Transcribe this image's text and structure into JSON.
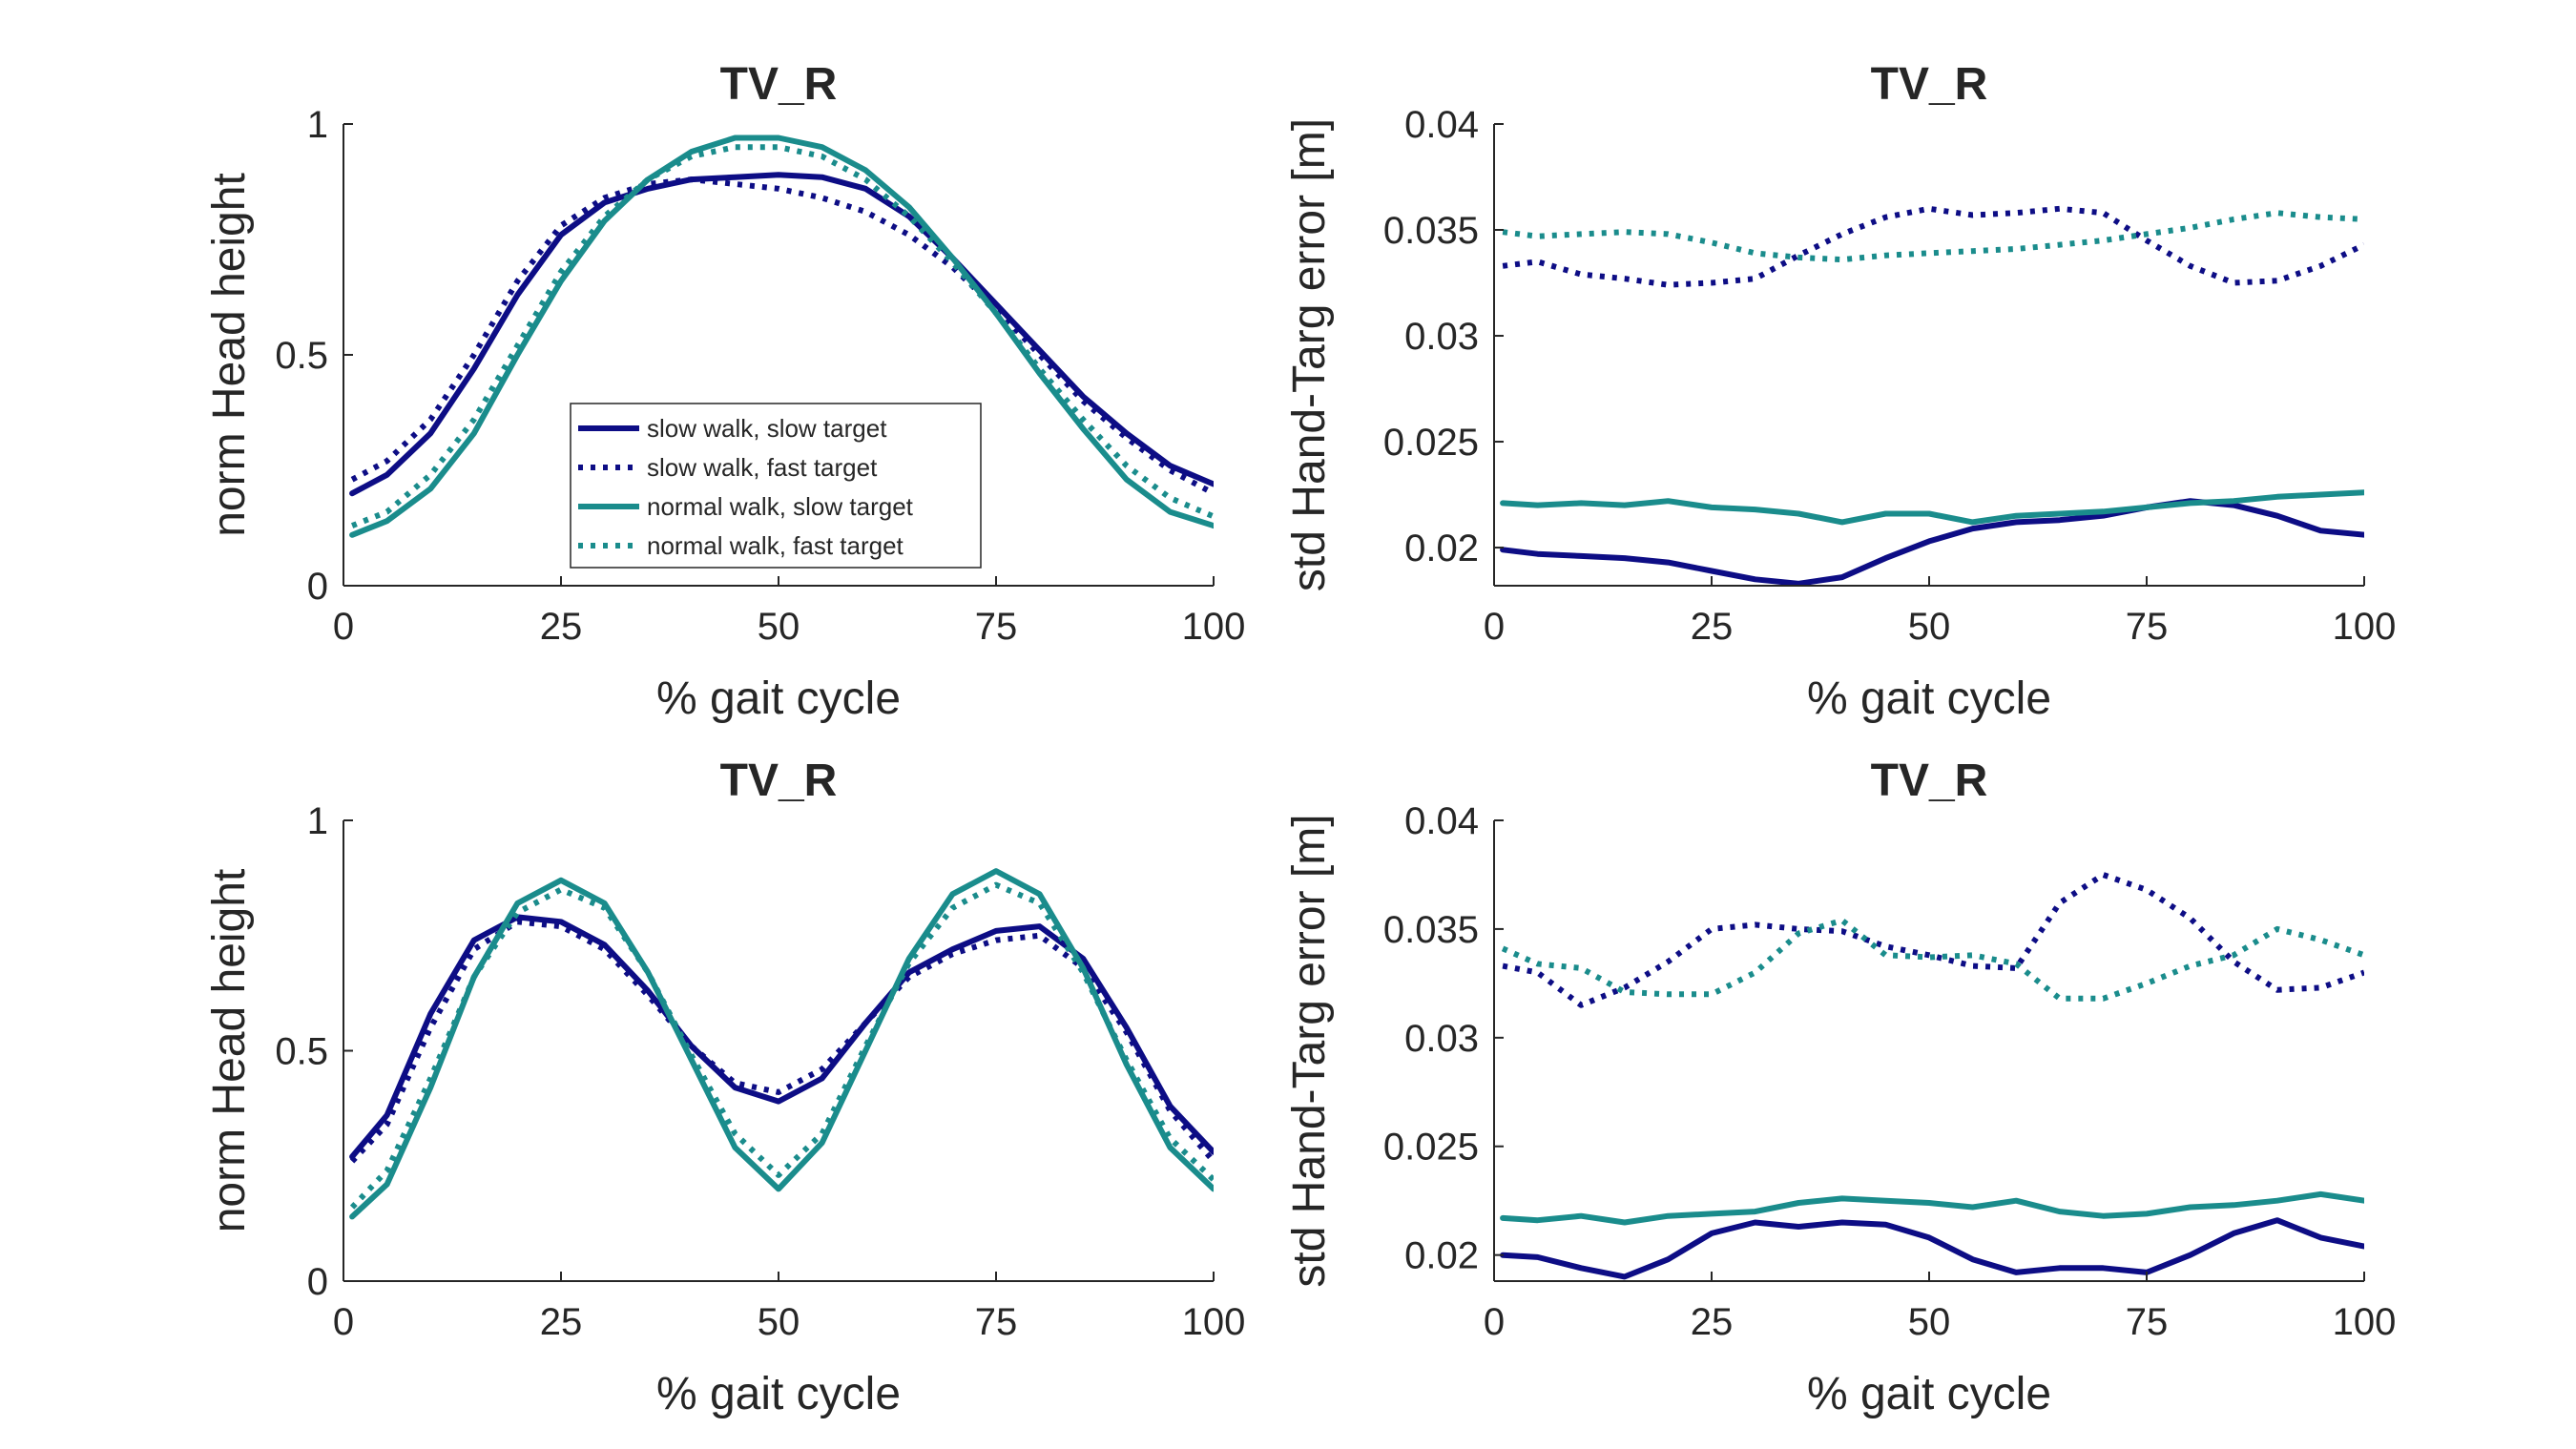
{
  "chart_data": [
    {
      "type": "line",
      "title": "TV_R",
      "xlabel": "% gait cycle",
      "ylabel": "norm Head height",
      "xlim": [
        0,
        100
      ],
      "ylim": [
        0,
        1
      ],
      "xticks": [
        0,
        25,
        50,
        75,
        100
      ],
      "xtick_labels": [
        "0",
        "25",
        "50",
        "75",
        "100"
      ],
      "yticks": [
        0,
        0.5,
        1
      ],
      "ytick_labels": [
        "0",
        "0.5",
        "1"
      ],
      "grid": false,
      "legend": {
        "location": "bottom-center",
        "entries": [
          "slow walk, slow target",
          "slow walk, fast target",
          "normal walk, slow target",
          "normal walk, fast target"
        ]
      },
      "series": [
        {
          "name": "slow walk, slow target",
          "color": "#0d0d85",
          "style": "solid",
          "x": [
            1,
            5,
            10,
            15,
            20,
            25,
            30,
            35,
            40,
            45,
            50,
            55,
            60,
            65,
            70,
            75,
            80,
            85,
            90,
            95,
            100
          ],
          "y": [
            0.2,
            0.24,
            0.33,
            0.47,
            0.63,
            0.76,
            0.83,
            0.86,
            0.88,
            0.885,
            0.89,
            0.885,
            0.86,
            0.8,
            0.71,
            0.61,
            0.51,
            0.41,
            0.33,
            0.26,
            0.22
          ]
        },
        {
          "name": "slow walk, fast target",
          "color": "#0d0d85",
          "style": "dotted",
          "x": [
            1,
            5,
            10,
            15,
            20,
            25,
            30,
            35,
            40,
            45,
            50,
            55,
            60,
            65,
            70,
            75,
            80,
            85,
            90,
            95,
            100
          ],
          "y": [
            0.23,
            0.27,
            0.36,
            0.5,
            0.66,
            0.78,
            0.84,
            0.87,
            0.88,
            0.87,
            0.86,
            0.84,
            0.81,
            0.76,
            0.69,
            0.6,
            0.5,
            0.4,
            0.32,
            0.25,
            0.2
          ]
        },
        {
          "name": "normal walk, slow target",
          "color": "#1a8c8c",
          "style": "solid",
          "x": [
            1,
            5,
            10,
            15,
            20,
            25,
            30,
            35,
            40,
            45,
            50,
            55,
            60,
            65,
            70,
            75,
            80,
            85,
            90,
            95,
            100
          ],
          "y": [
            0.11,
            0.14,
            0.21,
            0.33,
            0.5,
            0.66,
            0.79,
            0.88,
            0.94,
            0.97,
            0.97,
            0.95,
            0.9,
            0.82,
            0.71,
            0.59,
            0.46,
            0.34,
            0.23,
            0.16,
            0.13
          ]
        },
        {
          "name": "normal walk, fast target",
          "color": "#1a8c8c",
          "style": "dotted",
          "x": [
            1,
            5,
            10,
            15,
            20,
            25,
            30,
            35,
            40,
            45,
            50,
            55,
            60,
            65,
            70,
            75,
            80,
            85,
            90,
            95,
            100
          ],
          "y": [
            0.13,
            0.16,
            0.24,
            0.36,
            0.52,
            0.68,
            0.8,
            0.88,
            0.93,
            0.95,
            0.95,
            0.93,
            0.88,
            0.8,
            0.7,
            0.59,
            0.47,
            0.36,
            0.26,
            0.19,
            0.15
          ]
        }
      ]
    },
    {
      "type": "line",
      "title": "TV_R",
      "xlabel": "% gait cycle",
      "ylabel": "std Hand-Targ error [m]",
      "xlim": [
        0,
        100
      ],
      "ylim": [
        0.0182,
        0.04
      ],
      "xticks": [
        0,
        25,
        50,
        75,
        100
      ],
      "xtick_labels": [
        "0",
        "25",
        "50",
        "75",
        "100"
      ],
      "yticks": [
        0.02,
        0.025,
        0.03,
        0.035,
        0.04
      ],
      "ytick_labels": [
        "0.02",
        "0.025",
        "0.03",
        "0.035",
        "0.04"
      ],
      "grid": false,
      "series": [
        {
          "name": "slow walk, slow target",
          "color": "#0d0d85",
          "style": "solid",
          "x": [
            1,
            5,
            10,
            15,
            20,
            25,
            30,
            35,
            40,
            45,
            50,
            55,
            60,
            65,
            70,
            75,
            80,
            85,
            90,
            95,
            100
          ],
          "y": [
            0.0199,
            0.0197,
            0.0196,
            0.0195,
            0.0193,
            0.0189,
            0.0185,
            0.0183,
            0.0186,
            0.0195,
            0.0203,
            0.0209,
            0.0212,
            0.0213,
            0.0215,
            0.0219,
            0.0222,
            0.022,
            0.0215,
            0.0208,
            0.0206
          ]
        },
        {
          "name": "slow walk, fast target",
          "color": "#0d0d85",
          "style": "dotted",
          "x": [
            1,
            5,
            10,
            15,
            20,
            25,
            30,
            35,
            40,
            45,
            50,
            55,
            60,
            65,
            70,
            75,
            80,
            85,
            90,
            95,
            100
          ],
          "y": [
            0.0333,
            0.0335,
            0.0329,
            0.0327,
            0.0324,
            0.0325,
            0.0327,
            0.0338,
            0.0348,
            0.0356,
            0.036,
            0.0357,
            0.0358,
            0.036,
            0.0358,
            0.0345,
            0.0333,
            0.0325,
            0.0326,
            0.0333,
            0.0343
          ]
        },
        {
          "name": "normal walk, slow target",
          "color": "#1a8c8c",
          "style": "solid",
          "x": [
            1,
            5,
            10,
            15,
            20,
            25,
            30,
            35,
            40,
            45,
            50,
            55,
            60,
            65,
            70,
            75,
            80,
            85,
            90,
            95,
            100
          ],
          "y": [
            0.0221,
            0.022,
            0.0221,
            0.022,
            0.0222,
            0.0219,
            0.0218,
            0.0216,
            0.0212,
            0.0216,
            0.0216,
            0.0212,
            0.0215,
            0.0216,
            0.0217,
            0.0219,
            0.0221,
            0.0222,
            0.0224,
            0.0225,
            0.0226
          ]
        },
        {
          "name": "normal walk, fast target",
          "color": "#1a8c8c",
          "style": "dotted",
          "x": [
            1,
            5,
            10,
            15,
            20,
            25,
            30,
            35,
            40,
            45,
            50,
            55,
            60,
            65,
            70,
            75,
            80,
            85,
            90,
            95,
            100
          ],
          "y": [
            0.0349,
            0.0347,
            0.0348,
            0.0349,
            0.0348,
            0.0344,
            0.0339,
            0.0337,
            0.0336,
            0.0338,
            0.0339,
            0.034,
            0.0341,
            0.0343,
            0.0345,
            0.0348,
            0.0351,
            0.0355,
            0.0358,
            0.0356,
            0.0355
          ]
        }
      ]
    },
    {
      "type": "line",
      "title": "TV_R",
      "xlabel": "% gait cycle",
      "ylabel": "norm Head height",
      "xlim": [
        0,
        100
      ],
      "ylim": [
        0,
        1
      ],
      "xticks": [
        0,
        25,
        50,
        75,
        100
      ],
      "xtick_labels": [
        "0",
        "25",
        "50",
        "75",
        "100"
      ],
      "yticks": [
        0,
        0.5,
        1
      ],
      "ytick_labels": [
        "0",
        "0.5",
        "1"
      ],
      "grid": false,
      "series": [
        {
          "name": "slow walk, slow target",
          "color": "#0d0d85",
          "style": "solid",
          "x": [
            1,
            5,
            10,
            15,
            20,
            25,
            30,
            35,
            40,
            45,
            50,
            55,
            60,
            65,
            70,
            75,
            80,
            85,
            90,
            95,
            100
          ],
          "y": [
            0.27,
            0.36,
            0.58,
            0.74,
            0.79,
            0.78,
            0.73,
            0.63,
            0.51,
            0.42,
            0.39,
            0.44,
            0.56,
            0.67,
            0.72,
            0.76,
            0.77,
            0.7,
            0.55,
            0.38,
            0.28
          ]
        },
        {
          "name": "slow walk, fast target",
          "color": "#0d0d85",
          "style": "dotted",
          "x": [
            1,
            5,
            10,
            15,
            20,
            25,
            30,
            35,
            40,
            45,
            50,
            55,
            60,
            65,
            70,
            75,
            80,
            85,
            90,
            95,
            100
          ],
          "y": [
            0.26,
            0.34,
            0.55,
            0.72,
            0.78,
            0.77,
            0.72,
            0.62,
            0.51,
            0.43,
            0.41,
            0.46,
            0.56,
            0.66,
            0.71,
            0.74,
            0.75,
            0.68,
            0.54,
            0.37,
            0.26
          ]
        },
        {
          "name": "normal walk, slow target",
          "color": "#1a8c8c",
          "style": "solid",
          "x": [
            1,
            5,
            10,
            15,
            20,
            25,
            30,
            35,
            40,
            45,
            50,
            55,
            60,
            65,
            70,
            75,
            80,
            85,
            90,
            95,
            100
          ],
          "y": [
            0.14,
            0.21,
            0.42,
            0.66,
            0.82,
            0.87,
            0.82,
            0.67,
            0.48,
            0.29,
            0.2,
            0.3,
            0.5,
            0.7,
            0.84,
            0.89,
            0.84,
            0.68,
            0.47,
            0.29,
            0.2
          ]
        },
        {
          "name": "normal walk, fast target",
          "color": "#1a8c8c",
          "style": "dotted",
          "x": [
            1,
            5,
            10,
            15,
            20,
            25,
            30,
            35,
            40,
            45,
            50,
            55,
            60,
            65,
            70,
            75,
            80,
            85,
            90,
            95,
            100
          ],
          "y": [
            0.16,
            0.24,
            0.44,
            0.66,
            0.8,
            0.85,
            0.81,
            0.67,
            0.49,
            0.32,
            0.23,
            0.32,
            0.51,
            0.69,
            0.81,
            0.86,
            0.82,
            0.67,
            0.48,
            0.31,
            0.22
          ]
        }
      ]
    },
    {
      "type": "line",
      "title": "TV_R",
      "xlabel": "% gait cycle",
      "ylabel": "std Hand-Targ error [m]",
      "xlim": [
        0,
        100
      ],
      "ylim": [
        0.0188,
        0.04
      ],
      "xticks": [
        0,
        25,
        50,
        75,
        100
      ],
      "xtick_labels": [
        "0",
        "25",
        "50",
        "75",
        "100"
      ],
      "yticks": [
        0.02,
        0.025,
        0.03,
        0.035,
        0.04
      ],
      "ytick_labels": [
        "0.02",
        "0.025",
        "0.03",
        "0.035",
        "0.04"
      ],
      "grid": false,
      "series": [
        {
          "name": "slow walk, slow target",
          "color": "#0d0d85",
          "style": "solid",
          "x": [
            1,
            5,
            10,
            15,
            20,
            25,
            30,
            35,
            40,
            45,
            50,
            55,
            60,
            65,
            70,
            75,
            80,
            85,
            90,
            95,
            100
          ],
          "y": [
            0.02,
            0.0199,
            0.0194,
            0.019,
            0.0198,
            0.021,
            0.0215,
            0.0213,
            0.0215,
            0.0214,
            0.0208,
            0.0198,
            0.0192,
            0.0194,
            0.0194,
            0.0192,
            0.02,
            0.021,
            0.0216,
            0.0208,
            0.0204
          ]
        },
        {
          "name": "slow walk, fast target",
          "color": "#0d0d85",
          "style": "dotted",
          "x": [
            1,
            5,
            10,
            15,
            20,
            25,
            30,
            35,
            40,
            45,
            50,
            55,
            60,
            65,
            70,
            75,
            80,
            85,
            90,
            95,
            100
          ],
          "y": [
            0.0333,
            0.033,
            0.0315,
            0.0323,
            0.0335,
            0.035,
            0.0352,
            0.035,
            0.0349,
            0.0342,
            0.0338,
            0.0333,
            0.0332,
            0.0362,
            0.0375,
            0.0368,
            0.0355,
            0.0335,
            0.0322,
            0.0323,
            0.033
          ]
        },
        {
          "name": "normal walk, slow target",
          "color": "#1a8c8c",
          "style": "solid",
          "x": [
            1,
            5,
            10,
            15,
            20,
            25,
            30,
            35,
            40,
            45,
            50,
            55,
            60,
            65,
            70,
            75,
            80,
            85,
            90,
            95,
            100
          ],
          "y": [
            0.0217,
            0.0216,
            0.0218,
            0.0215,
            0.0218,
            0.0219,
            0.022,
            0.0224,
            0.0226,
            0.0225,
            0.0224,
            0.0222,
            0.0225,
            0.022,
            0.0218,
            0.0219,
            0.0222,
            0.0223,
            0.0225,
            0.0228,
            0.0225
          ]
        },
        {
          "name": "normal walk, fast target",
          "color": "#1a8c8c",
          "style": "dotted",
          "x": [
            1,
            5,
            10,
            15,
            20,
            25,
            30,
            35,
            40,
            45,
            50,
            55,
            60,
            65,
            70,
            75,
            80,
            85,
            90,
            95,
            100
          ],
          "y": [
            0.0341,
            0.0334,
            0.0332,
            0.0321,
            0.032,
            0.032,
            0.033,
            0.0348,
            0.0354,
            0.0338,
            0.0337,
            0.0338,
            0.0334,
            0.0318,
            0.0318,
            0.0325,
            0.0333,
            0.0338,
            0.035,
            0.0345,
            0.0338
          ]
        }
      ]
    }
  ]
}
